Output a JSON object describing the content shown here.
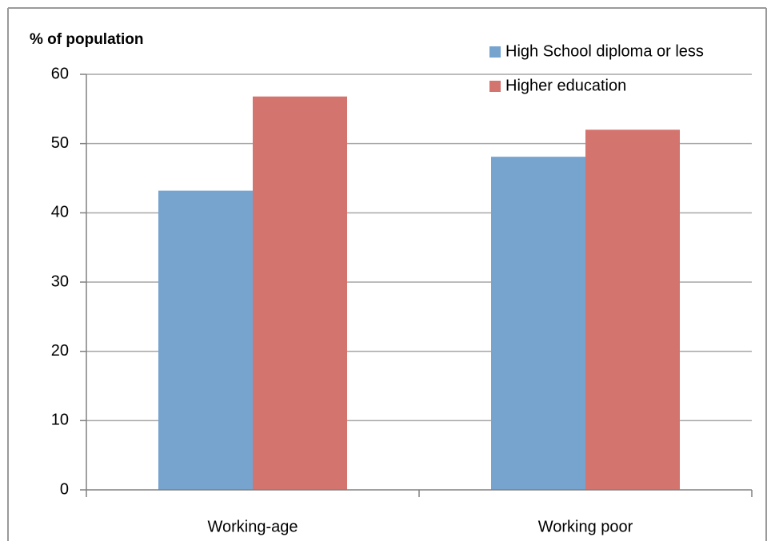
{
  "chart_data": {
    "type": "bar",
    "title": "% of population",
    "categories": [
      "Working-age",
      "Working poor"
    ],
    "series": [
      {
        "name": "High School diploma or less",
        "color": "#77a4cf",
        "values": [
          43.2,
          48.1
        ]
      },
      {
        "name": "Higher education",
        "color": "#d4746e",
        "values": [
          56.8,
          52.0
        ]
      }
    ],
    "ylim": [
      0,
      60
    ],
    "yticks": [
      0,
      10,
      20,
      30,
      40,
      50,
      60
    ],
    "grid": true,
    "legend": "top-right"
  }
}
